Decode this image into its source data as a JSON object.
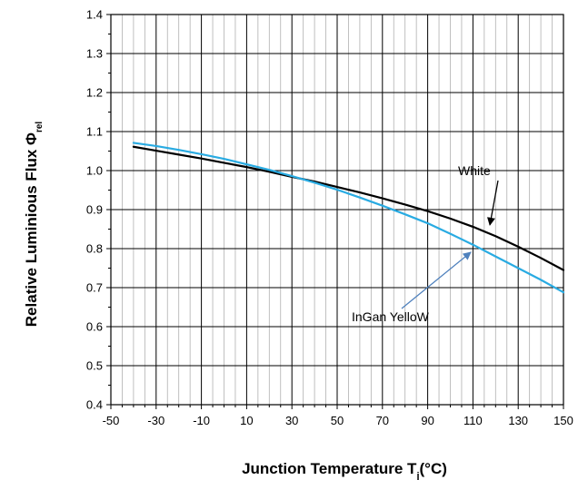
{
  "chart_data": {
    "type": "line",
    "xlabel": "Junction Temperature T",
    "xlabel_subscript": "j",
    "xlabel_suffix": "(°C)",
    "ylabel": "Relative Luminious Flux Φ",
    "ylabel_subscript": "rel",
    "xlim": [
      -50,
      150
    ],
    "ylim": [
      0.4,
      1.4
    ],
    "xticks": [
      -50,
      -30,
      -10,
      10,
      30,
      50,
      70,
      90,
      110,
      130,
      150
    ],
    "yticks": [
      "0.4",
      "0.5",
      "0.6",
      "0.7",
      "0.8",
      "0.9",
      "1.0",
      "1.1",
      "1.2",
      "1.3",
      "1.4"
    ],
    "x_minor_step": 5,
    "y_major_step": 0.1,
    "grid": true,
    "series": [
      {
        "name": "White",
        "color": "#000000",
        "x": [
          -40,
          -30,
          -20,
          -10,
          0,
          10,
          20,
          30,
          40,
          50,
          60,
          70,
          80,
          90,
          100,
          110,
          120,
          130,
          140,
          150
        ],
        "y": [
          1.061,
          1.051,
          1.041,
          1.031,
          1.02,
          1.009,
          0.997,
          0.984,
          0.972,
          0.958,
          0.944,
          0.929,
          0.913,
          0.896,
          0.877,
          0.856,
          0.832,
          0.805,
          0.776,
          0.745
        ]
      },
      {
        "name": "InGan YelloW",
        "color": "#29abe2",
        "x": [
          -40,
          -30,
          -20,
          -10,
          0,
          10,
          20,
          30,
          40,
          50,
          60,
          70,
          80,
          90,
          100,
          110,
          120,
          130,
          140,
          150
        ],
        "y": [
          1.071,
          1.063,
          1.053,
          1.042,
          1.03,
          1.016,
          1.002,
          0.986,
          0.969,
          0.951,
          0.931,
          0.91,
          0.888,
          0.865,
          0.838,
          0.81,
          0.78,
          0.75,
          0.72,
          0.688
        ]
      }
    ]
  }
}
